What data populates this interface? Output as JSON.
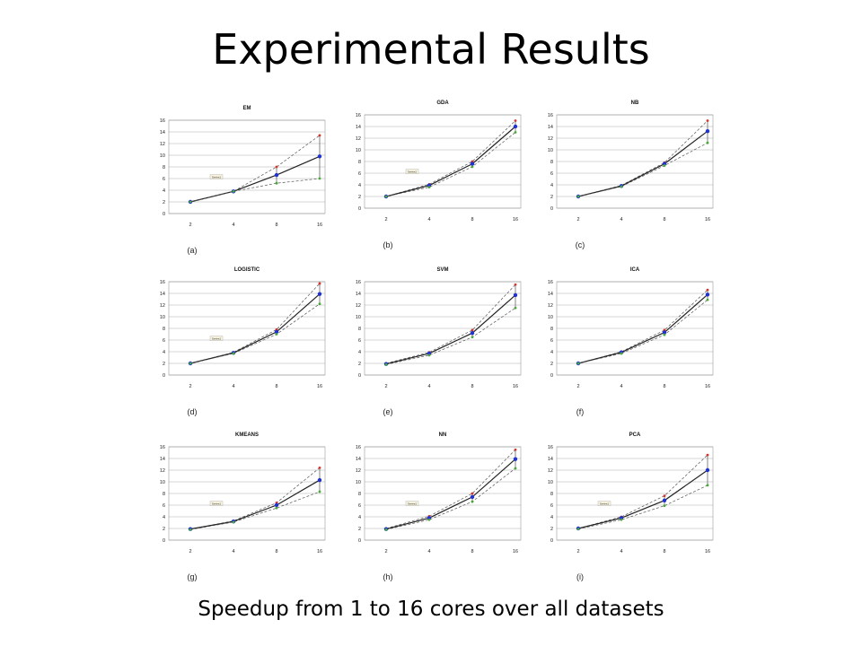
{
  "slide": {
    "title": "Experimental Results",
    "caption": "Speedup from 1 to 16 cores over all datasets"
  },
  "colors": {
    "mean": "#222222",
    "max": "#d9302a",
    "avg": "#2233cc",
    "min": "#44aa33",
    "grid": "#999999"
  },
  "chart_data": [
    {
      "type": "line",
      "title": "EM",
      "sublabel": "(a)",
      "legend": "Series1",
      "x": [
        2,
        4,
        8,
        16
      ],
      "yticks": [
        0,
        2,
        4,
        6,
        8,
        10,
        12,
        14,
        16
      ],
      "ylim": [
        0,
        16
      ],
      "series": [
        {
          "values": [
            2,
            3.8,
            8,
            13.4
          ]
        },
        {
          "values": [
            2,
            3.8,
            6.6,
            9.8
          ]
        },
        {
          "values": [
            2,
            3.8,
            5.2,
            6
          ]
        }
      ]
    },
    {
      "type": "line",
      "title": "GDA",
      "sublabel": "(b)",
      "legend": "Series1",
      "x": [
        2,
        4,
        8,
        16
      ],
      "yticks": [
        0,
        2,
        4,
        6,
        8,
        10,
        12,
        14,
        16
      ],
      "ylim": [
        0,
        16
      ],
      "series": [
        {
          "values": [
            2,
            4.1,
            8,
            15
          ]
        },
        {
          "values": [
            2,
            3.9,
            7.6,
            14
          ]
        },
        {
          "values": [
            2,
            3.6,
            7.1,
            13
          ]
        }
      ]
    },
    {
      "type": "line",
      "title": "NB",
      "sublabel": "(c)",
      "legend": "",
      "x": [
        2,
        4,
        8,
        16
      ],
      "yticks": [
        0,
        2,
        4,
        6,
        8,
        10,
        12,
        14,
        16
      ],
      "ylim": [
        0,
        16
      ],
      "series": [
        {
          "values": [
            2,
            3.9,
            7.8,
            15
          ]
        },
        {
          "values": [
            2,
            3.8,
            7.6,
            13.2
          ]
        },
        {
          "values": [
            2,
            3.7,
            7.3,
            11.2
          ]
        }
      ]
    },
    {
      "type": "line",
      "title": "LOGISTIC",
      "sublabel": "(d)",
      "legend": "Series1",
      "x": [
        2,
        4,
        8,
        16
      ],
      "yticks": [
        0,
        2,
        4,
        6,
        8,
        10,
        12,
        14,
        16
      ],
      "ylim": [
        0,
        16
      ],
      "series": [
        {
          "values": [
            2,
            3.9,
            7.8,
            15.7
          ]
        },
        {
          "values": [
            2,
            3.8,
            7.4,
            13.9
          ]
        },
        {
          "values": [
            2,
            3.7,
            7,
            12.2
          ]
        }
      ]
    },
    {
      "type": "line",
      "title": "SVM",
      "sublabel": "(e)",
      "legend": "",
      "x": [
        2,
        4,
        8,
        16
      ],
      "yticks": [
        0,
        2,
        4,
        6,
        8,
        10,
        12,
        14,
        16
      ],
      "ylim": [
        0,
        16
      ],
      "series": [
        {
          "values": [
            2,
            3.9,
            7.7,
            15.5
          ]
        },
        {
          "values": [
            1.9,
            3.7,
            7.2,
            13.7
          ]
        },
        {
          "values": [
            1.8,
            3.4,
            6.5,
            11.5
          ]
        }
      ]
    },
    {
      "type": "line",
      "title": "ICA",
      "sublabel": "(f)",
      "legend": "",
      "x": [
        2,
        4,
        8,
        16
      ],
      "yticks": [
        0,
        2,
        4,
        6,
        8,
        10,
        12,
        14,
        16
      ],
      "ylim": [
        0,
        16
      ],
      "series": [
        {
          "values": [
            2,
            4,
            7.7,
            14.6
          ]
        },
        {
          "values": [
            2,
            3.9,
            7.3,
            13.8
          ]
        },
        {
          "values": [
            2,
            3.7,
            6.9,
            12.9
          ]
        }
      ]
    },
    {
      "type": "line",
      "title": "KMEANS",
      "sublabel": "(g)",
      "legend": "Series1",
      "x": [
        2,
        4,
        8,
        16
      ],
      "yticks": [
        0,
        2,
        4,
        6,
        8,
        10,
        12,
        14,
        16
      ],
      "ylim": [
        0,
        16
      ],
      "series": [
        {
          "values": [
            1.9,
            3.3,
            6.4,
            12.4
          ]
        },
        {
          "values": [
            1.9,
            3.2,
            6,
            10.3
          ]
        },
        {
          "values": [
            1.8,
            3.1,
            5.5,
            8.3
          ]
        }
      ]
    },
    {
      "type": "line",
      "title": "NN",
      "sublabel": "(h)",
      "legend": "Series1",
      "x": [
        2,
        4,
        8,
        16
      ],
      "yticks": [
        0,
        2,
        4,
        6,
        8,
        10,
        12,
        14,
        16
      ],
      "ylim": [
        0,
        16
      ],
      "series": [
        {
          "values": [
            2,
            4.1,
            8,
            15.5
          ]
        },
        {
          "values": [
            1.9,
            3.8,
            7.4,
            13.9
          ]
        },
        {
          "values": [
            1.8,
            3.5,
            6.6,
            12.3
          ]
        }
      ]
    },
    {
      "type": "line",
      "title": "PCA",
      "sublabel": "(i)",
      "legend": "Series1",
      "x": [
        2,
        4,
        8,
        16
      ],
      "yticks": [
        0,
        2,
        4,
        6,
        8,
        10,
        12,
        14,
        16
      ],
      "ylim": [
        0,
        16
      ],
      "series": [
        {
          "values": [
            2,
            4,
            7.6,
            14.6
          ]
        },
        {
          "values": [
            2,
            3.8,
            6.8,
            12
          ]
        },
        {
          "values": [
            1.9,
            3.5,
            5.9,
            9.4
          ]
        }
      ]
    }
  ]
}
